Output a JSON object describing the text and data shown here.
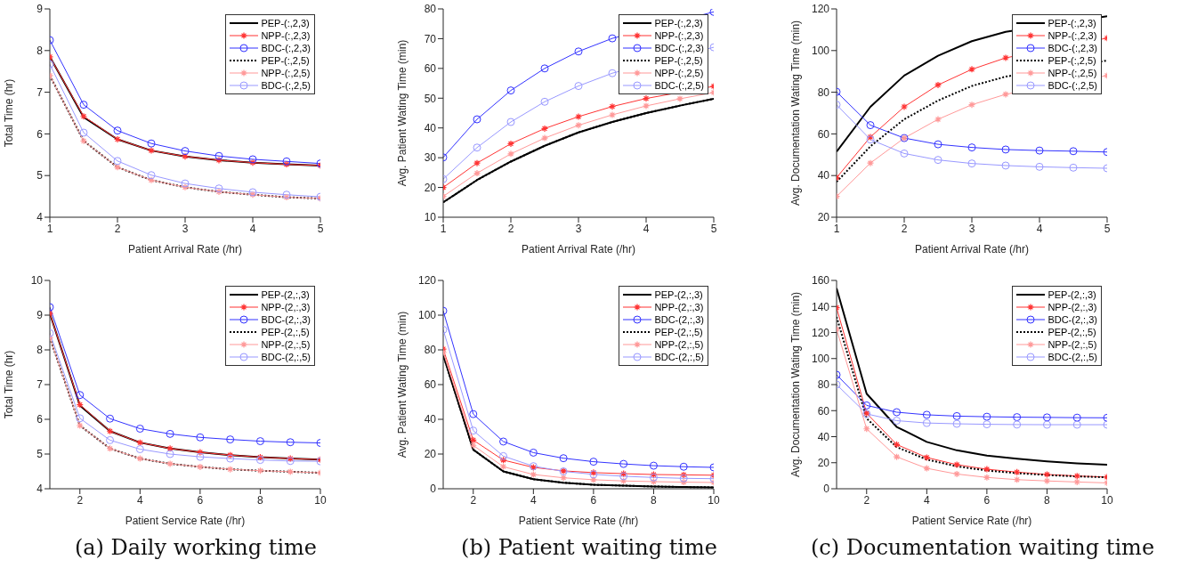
{
  "chart_data": [
    {
      "type": "line",
      "xlabel": "Patient Arrival Rate (/hr)",
      "ylabel": "Total Time (hr)",
      "x": [
        1,
        1.5,
        2,
        2.5,
        3,
        3.5,
        4,
        4.5,
        5
      ],
      "xlim": [
        1,
        5
      ],
      "xticks": [
        1,
        2,
        3,
        4,
        5
      ],
      "ylim": [
        4,
        9
      ],
      "yticks": [
        4,
        5,
        6,
        7,
        8,
        9
      ],
      "grid": false,
      "legend": "top right",
      "series": [
        {
          "name": "PEP-(:,2,3)",
          "color": "#000000",
          "marker": "none",
          "line_style": "solid",
          "values": [
            7.85,
            6.4,
            5.87,
            5.6,
            5.46,
            5.37,
            5.31,
            5.27,
            5.24
          ]
        },
        {
          "name": "NPP-(:,2,3)",
          "color": "#ff3333",
          "marker": "cross",
          "line_style": "solid",
          "values": [
            7.85,
            6.42,
            5.87,
            5.6,
            5.46,
            5.37,
            5.31,
            5.27,
            5.24
          ]
        },
        {
          "name": "BDC-(:,2,3)",
          "color": "#3333ff",
          "marker": "circle",
          "line_style": "solid",
          "values": [
            8.25,
            6.7,
            6.08,
            5.77,
            5.59,
            5.47,
            5.39,
            5.34,
            5.29
          ]
        },
        {
          "name": "PEP-(:,2,5)",
          "color": "#000000",
          "marker": "none",
          "line_style": "dotted",
          "values": [
            7.4,
            5.83,
            5.2,
            4.89,
            4.72,
            4.61,
            4.54,
            4.48,
            4.45
          ]
        },
        {
          "name": "NPP-(:,2,5)",
          "color": "#ff9999",
          "marker": "cross",
          "line_style": "solid",
          "values": [
            7.4,
            5.83,
            5.2,
            4.89,
            4.72,
            4.61,
            4.54,
            4.48,
            4.45
          ]
        },
        {
          "name": "BDC-(:,2,5)",
          "color": "#9999ff",
          "marker": "circle",
          "line_style": "solid",
          "values": [
            7.67,
            6.03,
            5.35,
            5.01,
            4.81,
            4.69,
            4.6,
            4.54,
            4.49
          ]
        }
      ]
    },
    {
      "type": "line",
      "xlabel": "Patient Arrival Rate (/hr)",
      "ylabel": "Avg. Patient Wating Time (min)",
      "x": [
        1,
        1.5,
        2,
        2.5,
        3,
        3.5,
        4,
        4.5,
        5
      ],
      "xlim": [
        1,
        5
      ],
      "xticks": [
        1,
        2,
        3,
        4,
        5
      ],
      "ylim": [
        10,
        80
      ],
      "yticks": [
        10,
        20,
        30,
        40,
        50,
        60,
        70,
        80
      ],
      "grid": false,
      "legend": "top right",
      "series": [
        {
          "name": "PEP-(:,2,3)",
          "color": "#000000",
          "marker": "none",
          "line_style": "solid",
          "values": [
            15,
            22.5,
            28.7,
            34,
            38.5,
            42,
            45,
            47.5,
            49.8
          ]
        },
        {
          "name": "NPP-(:,2,3)",
          "color": "#ff3333",
          "marker": "cross",
          "line_style": "solid",
          "values": [
            20,
            28.2,
            34.7,
            39.8,
            43.8,
            47.2,
            49.9,
            null,
            54
          ]
        },
        {
          "name": "BDC-(:,2,3)",
          "color": "#3333ff",
          "marker": "circle",
          "line_style": "solid",
          "values": [
            30.1,
            42.9,
            52.6,
            60,
            65.7,
            70.1,
            null,
            null,
            79
          ]
        },
        {
          "name": "PEP-(:,2,5)",
          "color": "#000000",
          "marker": "none",
          "line_style": "dotted",
          "values": [
            15,
            22.5,
            28.7,
            34,
            38.5,
            42,
            45,
            47.5,
            49.8
          ]
        },
        {
          "name": "NPP-(:,2,5)",
          "color": "#ff9999",
          "marker": "cross",
          "line_style": "solid",
          "values": [
            17,
            24.8,
            31.3,
            36.6,
            40.9,
            44.4,
            47.4,
            49.8,
            51.9
          ]
        },
        {
          "name": "BDC-(:,2,5)",
          "color": "#9999ff",
          "marker": "circle",
          "line_style": "solid",
          "values": [
            22.8,
            33.4,
            42,
            48.8,
            54.1,
            58.4,
            null,
            null,
            67.1
          ]
        }
      ]
    },
    {
      "type": "line",
      "xlabel": "Patient Arrival Rate (/hr)",
      "ylabel": "Avg. Documentation Wating Time (min)",
      "x": [
        1,
        1.5,
        2,
        2.5,
        3,
        3.5,
        4,
        4.5,
        5
      ],
      "xlim": [
        1,
        5
      ],
      "xticks": [
        1,
        2,
        3,
        4,
        5
      ],
      "ylim": [
        20,
        120
      ],
      "yticks": [
        20,
        40,
        60,
        80,
        100,
        120
      ],
      "grid": false,
      "legend": "top right",
      "series": [
        {
          "name": "PEP-(:,2,3)",
          "color": "#000000",
          "marker": "none",
          "line_style": "solid",
          "values": [
            51.5,
            73,
            88,
            97.5,
            104.5,
            109,
            null,
            null,
            116.5
          ]
        },
        {
          "name": "NPP-(:,2,3)",
          "color": "#ff3333",
          "marker": "cross",
          "line_style": "solid",
          "values": [
            39,
            58.5,
            73,
            83.5,
            91,
            96.5,
            null,
            null,
            106
          ]
        },
        {
          "name": "BDC-(:,2,3)",
          "color": "#3333ff",
          "marker": "circle",
          "line_style": "solid",
          "values": [
            80.2,
            64.2,
            58,
            55,
            53.5,
            52.5,
            52,
            51.7,
            51.3
          ]
        },
        {
          "name": "PEP-(:,2,5)",
          "color": "#000000",
          "marker": "none",
          "line_style": "dotted",
          "values": [
            37,
            54,
            67,
            76,
            83,
            87.5,
            null,
            null,
            95.2
          ]
        },
        {
          "name": "NPP-(:,2,5)",
          "color": "#ff9999",
          "marker": "cross",
          "line_style": "solid",
          "values": [
            30,
            46,
            58,
            67,
            74,
            79,
            null,
            null,
            88
          ]
        },
        {
          "name": "BDC-(:,2,5)",
          "color": "#9999ff",
          "marker": "circle",
          "line_style": "solid",
          "values": [
            74,
            57.3,
            50.6,
            47.5,
            45.8,
            44.8,
            44.2,
            43.8,
            43.5
          ]
        }
      ]
    },
    {
      "type": "line",
      "xlabel": "Patient Service Rate (/hr)",
      "ylabel": "Total Time (hr)",
      "x": [
        1,
        2,
        3,
        4,
        5,
        6,
        7,
        8,
        9,
        10
      ],
      "xlim": [
        1,
        10
      ],
      "xticks": [
        2,
        4,
        6,
        8,
        10
      ],
      "ylim": [
        4,
        10
      ],
      "yticks": [
        4,
        5,
        6,
        7,
        8,
        9,
        10
      ],
      "grid": false,
      "legend": "top right",
      "annotations": [
        "(a) Daily working time"
      ],
      "series": [
        {
          "name": "PEP-(2,:,3)",
          "color": "#000000",
          "marker": "none",
          "line_style": "solid",
          "values": [
            9.05,
            6.4,
            5.66,
            5.33,
            5.16,
            5.05,
            4.97,
            4.91,
            4.87,
            4.84
          ]
        },
        {
          "name": "NPP-(2,:,3)",
          "color": "#ff3333",
          "marker": "cross",
          "line_style": "solid",
          "values": [
            9.05,
            6.42,
            5.66,
            5.33,
            5.16,
            5.05,
            4.97,
            4.91,
            4.87,
            4.84
          ]
        },
        {
          "name": "BDC-(2,:,3)",
          "color": "#3333ff",
          "marker": "circle",
          "line_style": "solid",
          "values": [
            9.23,
            6.7,
            6.02,
            5.73,
            5.58,
            5.48,
            5.42,
            5.37,
            5.34,
            5.32
          ]
        },
        {
          "name": "PEP-(2,:,5)",
          "color": "#000000",
          "marker": "none",
          "line_style": "dotted",
          "values": [
            8.35,
            5.82,
            5.16,
            4.87,
            4.72,
            4.63,
            4.56,
            4.52,
            4.49,
            4.46
          ]
        },
        {
          "name": "NPP-(2,:,5)",
          "color": "#ff9999",
          "marker": "cross",
          "line_style": "solid",
          "values": [
            8.35,
            5.82,
            5.16,
            4.87,
            4.72,
            4.63,
            4.56,
            4.52,
            4.49,
            4.46
          ]
        },
        {
          "name": "BDC-(2,:,5)",
          "color": "#9999ff",
          "marker": "circle",
          "line_style": "solid",
          "values": [
            8.48,
            6.03,
            5.4,
            5.14,
            5.0,
            4.92,
            4.87,
            4.83,
            4.8,
            4.79
          ]
        }
      ]
    },
    {
      "type": "line",
      "xlabel": "Patient Service Rate (/hr)",
      "ylabel": "Avg. Patient Wating Time (min)",
      "x": [
        1,
        2,
        3,
        4,
        5,
        6,
        7,
        8,
        9,
        10
      ],
      "xlim": [
        1,
        10
      ],
      "xticks": [
        2,
        4,
        6,
        8,
        10
      ],
      "ylim": [
        0,
        120
      ],
      "yticks": [
        0,
        20,
        40,
        60,
        80,
        100,
        120
      ],
      "grid": false,
      "legend": "top right",
      "annotations": [
        "(b) Patient waiting time"
      ],
      "series": [
        {
          "name": "PEP-(2,:,3)",
          "color": "#000000",
          "marker": "none",
          "line_style": "solid",
          "values": [
            77,
            22.5,
            10,
            5.5,
            3.5,
            2.3,
            1.8,
            1.3,
            1,
            0.8
          ]
        },
        {
          "name": "NPP-(2,:,3)",
          "color": "#ff3333",
          "marker": "cross",
          "line_style": "solid",
          "values": [
            80.5,
            28,
            16.5,
            12.3,
            10.3,
            9.3,
            8.7,
            8.2,
            8,
            7.8
          ]
        },
        {
          "name": "BDC-(2,:,3)",
          "color": "#3333ff",
          "marker": "circle",
          "line_style": "solid",
          "values": [
            102.5,
            43,
            27.2,
            20.8,
            17.6,
            15.6,
            14.3,
            13.3,
            12.7,
            12.3
          ]
        },
        {
          "name": "PEP-(2,:,5)",
          "color": "#000000",
          "marker": "none",
          "line_style": "dotted",
          "values": [
            77,
            22.5,
            10,
            5.5,
            3.5,
            2.3,
            1.8,
            1.3,
            1,
            0.8
          ]
        },
        {
          "name": "NPP-(2,:,5)",
          "color": "#ff9999",
          "marker": "cross",
          "line_style": "solid",
          "values": [
            78.5,
            25,
            12.7,
            8.2,
            6.3,
            5.2,
            4.5,
            4.1,
            3.8,
            3.6
          ]
        },
        {
          "name": "BDC-(2,:,5)",
          "color": "#9999ff",
          "marker": "circle",
          "line_style": "solid",
          "values": [
            91.6,
            33.5,
            18.8,
            13,
            10,
            8.3,
            7.2,
            6.5,
            6,
            5.8
          ]
        }
      ]
    },
    {
      "type": "line",
      "xlabel": "Patient Service Rate (/hr)",
      "ylabel": "Avg. Documentation Wating Time (min)",
      "x": [
        1,
        2,
        3,
        4,
        5,
        6,
        7,
        8,
        9,
        10
      ],
      "xlim": [
        1,
        10
      ],
      "xticks": [
        2,
        4,
        6,
        8,
        10
      ],
      "ylim": [
        0,
        160
      ],
      "yticks": [
        0,
        20,
        40,
        60,
        80,
        100,
        120,
        140,
        160
      ],
      "grid": false,
      "legend": "top right",
      "annotations": [
        "(c) Documentation waiting time"
      ],
      "series": [
        {
          "name": "PEP-(2,:,3)",
          "color": "#000000",
          "marker": "none",
          "line_style": "solid",
          "values": [
            154,
            73,
            47.5,
            36,
            29.5,
            25.5,
            23,
            21,
            19.5,
            18.5
          ]
        },
        {
          "name": "NPP-(2,:,3)",
          "color": "#ff3333",
          "marker": "cross",
          "line_style": "solid",
          "values": [
            139,
            58,
            34,
            24,
            18.5,
            15,
            12.8,
            11,
            9.8,
            9
          ]
        },
        {
          "name": "BDC-(2,:,3)",
          "color": "#3333ff",
          "marker": "circle",
          "line_style": "solid",
          "values": [
            87.5,
            64,
            58.8,
            56.8,
            55.8,
            55.3,
            55,
            54.8,
            54.6,
            54.5
          ]
        },
        {
          "name": "PEP-(2,:,5)",
          "color": "#000000",
          "marker": "none",
          "line_style": "dotted",
          "values": [
            132,
            54,
            32,
            22.5,
            17.2,
            14,
            12,
            10.5,
            9.5,
            8.8
          ]
        },
        {
          "name": "NPP-(2,:,5)",
          "color": "#ff9999",
          "marker": "cross",
          "line_style": "solid",
          "values": [
            122.5,
            46,
            24.5,
            15.7,
            11.3,
            8.7,
            7,
            6,
            5.2,
            4.5
          ]
        },
        {
          "name": "BDC-(2,:,5)",
          "color": "#9999ff",
          "marker": "circle",
          "line_style": "solid",
          "values": [
            80,
            57.5,
            52.3,
            50.5,
            49.9,
            49.5,
            49.3,
            49.2,
            49.2,
            49.2
          ]
        }
      ]
    }
  ]
}
